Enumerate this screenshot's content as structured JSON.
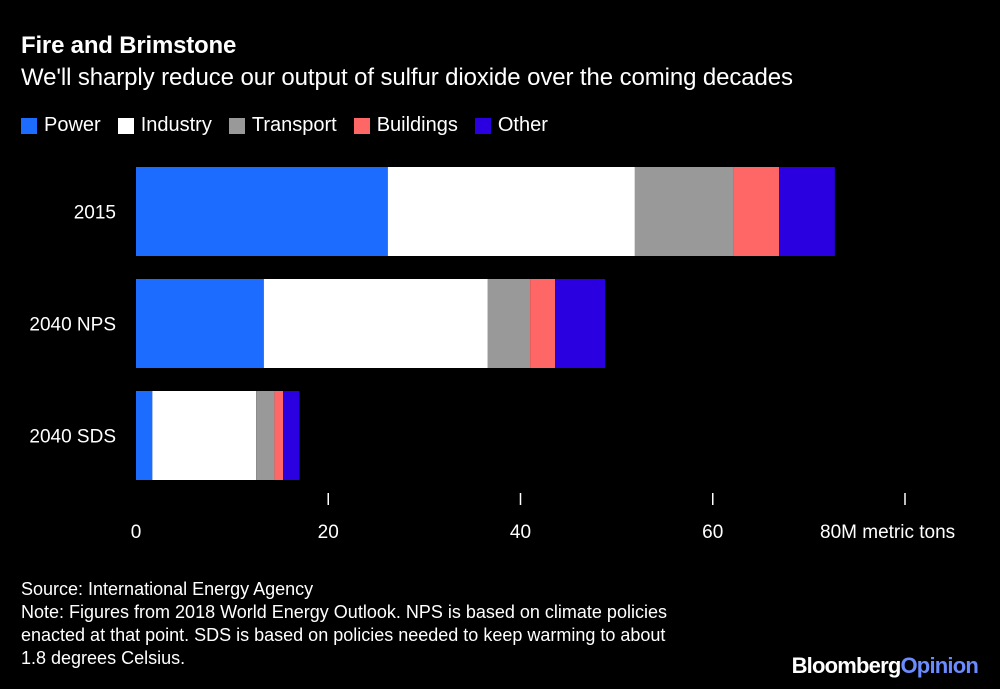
{
  "header": {
    "title": "Fire and Brimstone",
    "subtitle": "We'll sharply reduce our output of sulfur dioxide over the coming decades"
  },
  "legend": [
    {
      "label": "Power",
      "color": "#1c6dff"
    },
    {
      "label": "Industry",
      "color": "#ffffff"
    },
    {
      "label": "Transport",
      "color": "#999999"
    },
    {
      "label": "Buildings",
      "color": "#ff6666"
    },
    {
      "label": "Other",
      "color": "#2b00e0"
    }
  ],
  "chart_data": {
    "type": "bar",
    "orientation": "horizontal",
    "stacked": true,
    "categories": [
      "2015",
      "2040 NPS",
      "2040 SDS"
    ],
    "series": [
      {
        "name": "Power",
        "color": "#1c6dff",
        "values": [
          26.2,
          13.3,
          1.7
        ]
      },
      {
        "name": "Industry",
        "color": "#ffffff",
        "values": [
          25.7,
          23.3,
          10.8
        ]
      },
      {
        "name": "Transport",
        "color": "#999999",
        "values": [
          10.3,
          4.4,
          1.9
        ]
      },
      {
        "name": "Buildings",
        "color": "#ff6666",
        "values": [
          4.7,
          2.6,
          0.9
        ]
      },
      {
        "name": "Other",
        "color": "#2b00e0",
        "values": [
          5.8,
          5.2,
          1.7
        ]
      }
    ],
    "xlim": [
      0,
      80
    ],
    "xticks": [
      0,
      20,
      40,
      60,
      80
    ],
    "xtick_labels": [
      "0",
      "20",
      "40",
      "60",
      "80M metric tons"
    ],
    "title": "Fire and Brimstone",
    "xlabel": "",
    "ylabel": "",
    "grid": false,
    "legend_position": "top-left"
  },
  "footer": {
    "source": "Source: International Energy Agency",
    "note_lines": [
      "Note: Figures from 2018 World Energy Outlook. NPS is based on climate policies",
      "enacted at that point. SDS is based on policies needed to keep warming to about",
      "1.8 degrees Celsius."
    ]
  },
  "brand": {
    "part1": "Bloomberg",
    "part2": "Opinion"
  }
}
